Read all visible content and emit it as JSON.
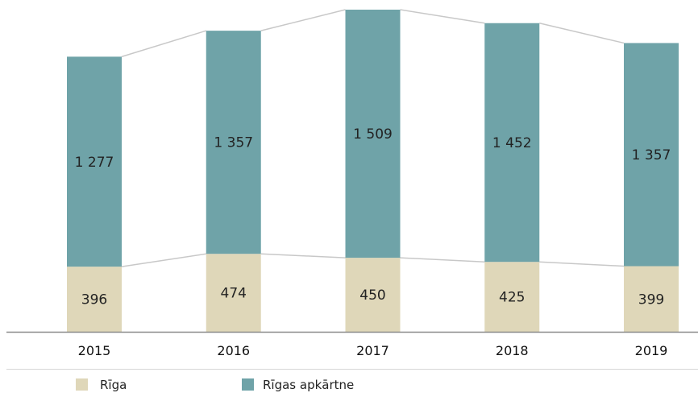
{
  "chart_data": {
    "type": "bar",
    "stacked": true,
    "categories": [
      "2015",
      "2016",
      "2017",
      "2018",
      "2019"
    ],
    "series": [
      {
        "name": "Rīga",
        "values": [
          396,
          474,
          450,
          425,
          399
        ],
        "labels": [
          "396",
          "474",
          "450",
          "425",
          "399"
        ],
        "color": "#dfd7b9"
      },
      {
        "name": "Rīgas apkārtne",
        "values": [
          1277,
          1357,
          1509,
          1452,
          1357
        ],
        "labels": [
          "1 277",
          "1 357",
          "1 509",
          "1 452",
          "1 357"
        ],
        "color": "#6fa3a8"
      }
    ],
    "ylim": [
      0,
      1959
    ],
    "connector_lines": true,
    "grid": false,
    "legend_position": "bottom-left",
    "title": "",
    "xlabel": "",
    "ylabel": ""
  }
}
